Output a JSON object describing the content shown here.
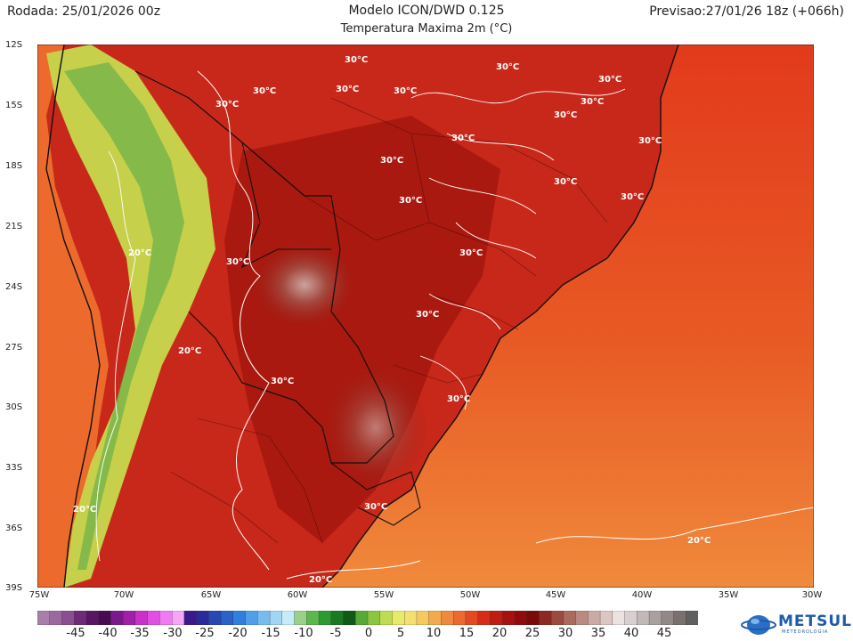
{
  "header": {
    "run": "Rodada: 25/01/2026 00z",
    "model": "Modelo ICON/DWD 0.125",
    "variable": "Temperatura Maxima 2m (°C)",
    "forecast": "Previsao:27/01/26 18z (+066h)"
  },
  "map": {
    "lat_labels": [
      "12S",
      "15S",
      "18S",
      "21S",
      "24S",
      "27S",
      "30S",
      "33S",
      "36S",
      "39S"
    ],
    "lon_labels": [
      "75W",
      "70W",
      "65W",
      "60W",
      "55W",
      "50W",
      "45W",
      "40W",
      "35W",
      "30W"
    ],
    "contour_labels": [
      "30°C",
      "30°C",
      "30°C",
      "30°C",
      "30°C",
      "30°C",
      "30°C",
      "30°C",
      "30°C",
      "30°C",
      "30°C",
      "30°C",
      "30°C",
      "30°C",
      "30°C",
      "30°C",
      "30°C",
      "30°C",
      "30°C",
      "30°C",
      "30°C",
      "20°C",
      "20°C",
      "20°C",
      "20°C",
      "20°C"
    ]
  },
  "colorbar": {
    "labels": [
      "-45",
      "-40",
      "-35",
      "-30",
      "-25",
      "-20",
      "-15",
      "-10",
      "-5",
      "0",
      "5",
      "10",
      "15",
      "20",
      "25",
      "30",
      "35",
      "40",
      "45"
    ],
    "colors": [
      "#a87fa8",
      "#9a6a9e",
      "#8a4f8f",
      "#6e2a78",
      "#5a1464",
      "#4a0a52",
      "#7a1a8a",
      "#a020a8",
      "#c832c8",
      "#e050e0",
      "#f07af0",
      "#f6a6f6",
      "#3a1a8a",
      "#2a2a9a",
      "#2a46b0",
      "#2a62c8",
      "#2f7fdc",
      "#4f9fe8",
      "#78bcef",
      "#a0d6f4",
      "#c6ecf8",
      "#9ad08a",
      "#5cb84e",
      "#2e9a32",
      "#1a7a22",
      "#0e5a16",
      "#5aa838",
      "#8cc640",
      "#bedc52",
      "#e8ea6a",
      "#f4e070",
      "#f6c860",
      "#f2aa4e",
      "#ee8a3e",
      "#ea6a30",
      "#e24a22",
      "#d42e18",
      "#c01c12",
      "#a8120e",
      "#900c0c",
      "#7a0a0a",
      "#8a2a22",
      "#9a4a3e",
      "#aa6a5e",
      "#ba8a82",
      "#caaaa4",
      "#dcc6c2",
      "#ece2e0",
      "#d8d0d0",
      "#c2b8b8",
      "#aaa0a0",
      "#928888",
      "#7a7070",
      "#606060"
    ]
  },
  "logo": {
    "name": "METSUL",
    "tagline": "METEOROLOGIA"
  }
}
